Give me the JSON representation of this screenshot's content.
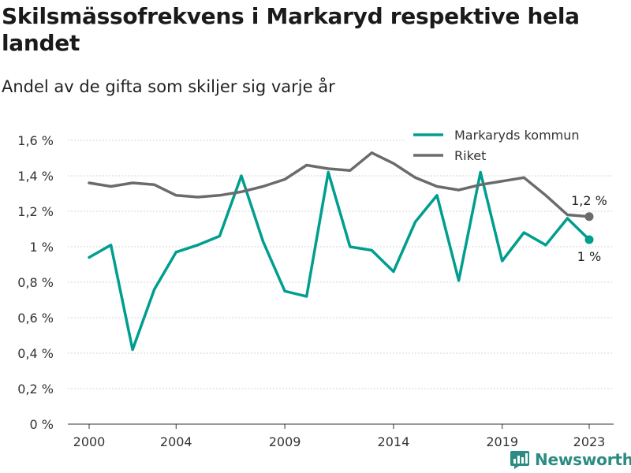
{
  "title": "Skilsmässofrekvens i Markaryd respektive hela landet",
  "subtitle": "Andel av de gifta som skiljer sig varje år",
  "brand": {
    "name": "Newsworthy",
    "icon": "newsworthy-logo-icon"
  },
  "colors": {
    "markaryd": "#009e8f",
    "riket": "#6b6b6b",
    "grid": "#d6d6d6",
    "brand": "#2c8c83"
  },
  "chart_data": {
    "type": "line",
    "x": [
      2000,
      2001,
      2002,
      2003,
      2004,
      2005,
      2006,
      2007,
      2008,
      2009,
      2010,
      2011,
      2012,
      2013,
      2014,
      2015,
      2016,
      2017,
      2018,
      2019,
      2020,
      2021,
      2022,
      2023
    ],
    "series": [
      {
        "name": "Markaryds kommun",
        "color": "#009e8f",
        "values": [
          0.94,
          1.01,
          0.42,
          0.76,
          0.97,
          1.01,
          1.06,
          1.4,
          1.03,
          0.75,
          0.72,
          1.42,
          1.0,
          0.98,
          0.86,
          1.14,
          1.29,
          0.81,
          1.42,
          0.92,
          1.08,
          1.01,
          1.16,
          1.04
        ],
        "end_label": "1 %"
      },
      {
        "name": "Riket",
        "color": "#6b6b6b",
        "values": [
          1.36,
          1.34,
          1.36,
          1.35,
          1.29,
          1.28,
          1.29,
          1.31,
          1.34,
          1.38,
          1.46,
          1.44,
          1.43,
          1.53,
          1.47,
          1.39,
          1.34,
          1.32,
          1.35,
          1.37,
          1.39,
          1.29,
          1.18,
          1.17
        ],
        "end_label": "1,2 %"
      }
    ],
    "xticks": [
      2000,
      2004,
      2009,
      2014,
      2019,
      2023
    ],
    "yticks": [
      0,
      0.2,
      0.4,
      0.6,
      0.8,
      1.0,
      1.2,
      1.4,
      1.6
    ],
    "ytick_labels": [
      "0 %",
      "0,2 %",
      "0,4 %",
      "0,6 %",
      "0,8 %",
      "1 %",
      "1,2 %",
      "1,4 %",
      "1,6 %"
    ],
    "ylim": [
      0,
      1.6
    ],
    "xlim": [
      2000,
      2023
    ],
    "grid": true,
    "legend": "top-right"
  }
}
